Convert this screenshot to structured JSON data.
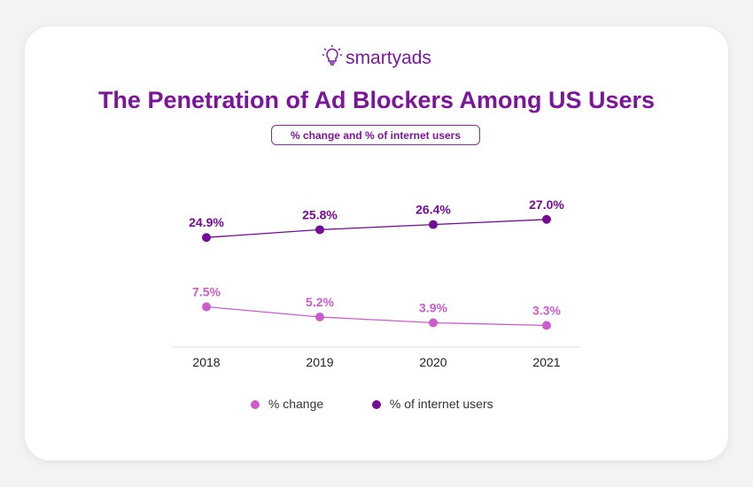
{
  "logo_text": "smartyads",
  "title": "The Penetration of Ad Blockers Among US Users",
  "subtitle": "% change and % of internet users",
  "chart_data": {
    "type": "line",
    "categories": [
      "2018",
      "2019",
      "2020",
      "2021"
    ],
    "series": [
      {
        "name": "% of internet users",
        "values": [
          24.9,
          25.8,
          26.4,
          27.0
        ],
        "labels": [
          "24.9%",
          "25.8%",
          "26.4%",
          "27.0%"
        ],
        "color": "#730c96"
      },
      {
        "name": "% change",
        "values": [
          7.5,
          5.2,
          3.9,
          3.3
        ],
        "labels": [
          "7.5%",
          "5.2%",
          "3.9%",
          "3.3%"
        ],
        "color": "#cc5ccc"
      }
    ],
    "legend": [
      "% change",
      "% of internet users"
    ],
    "legend_placement": "bottom",
    "grid": false
  }
}
